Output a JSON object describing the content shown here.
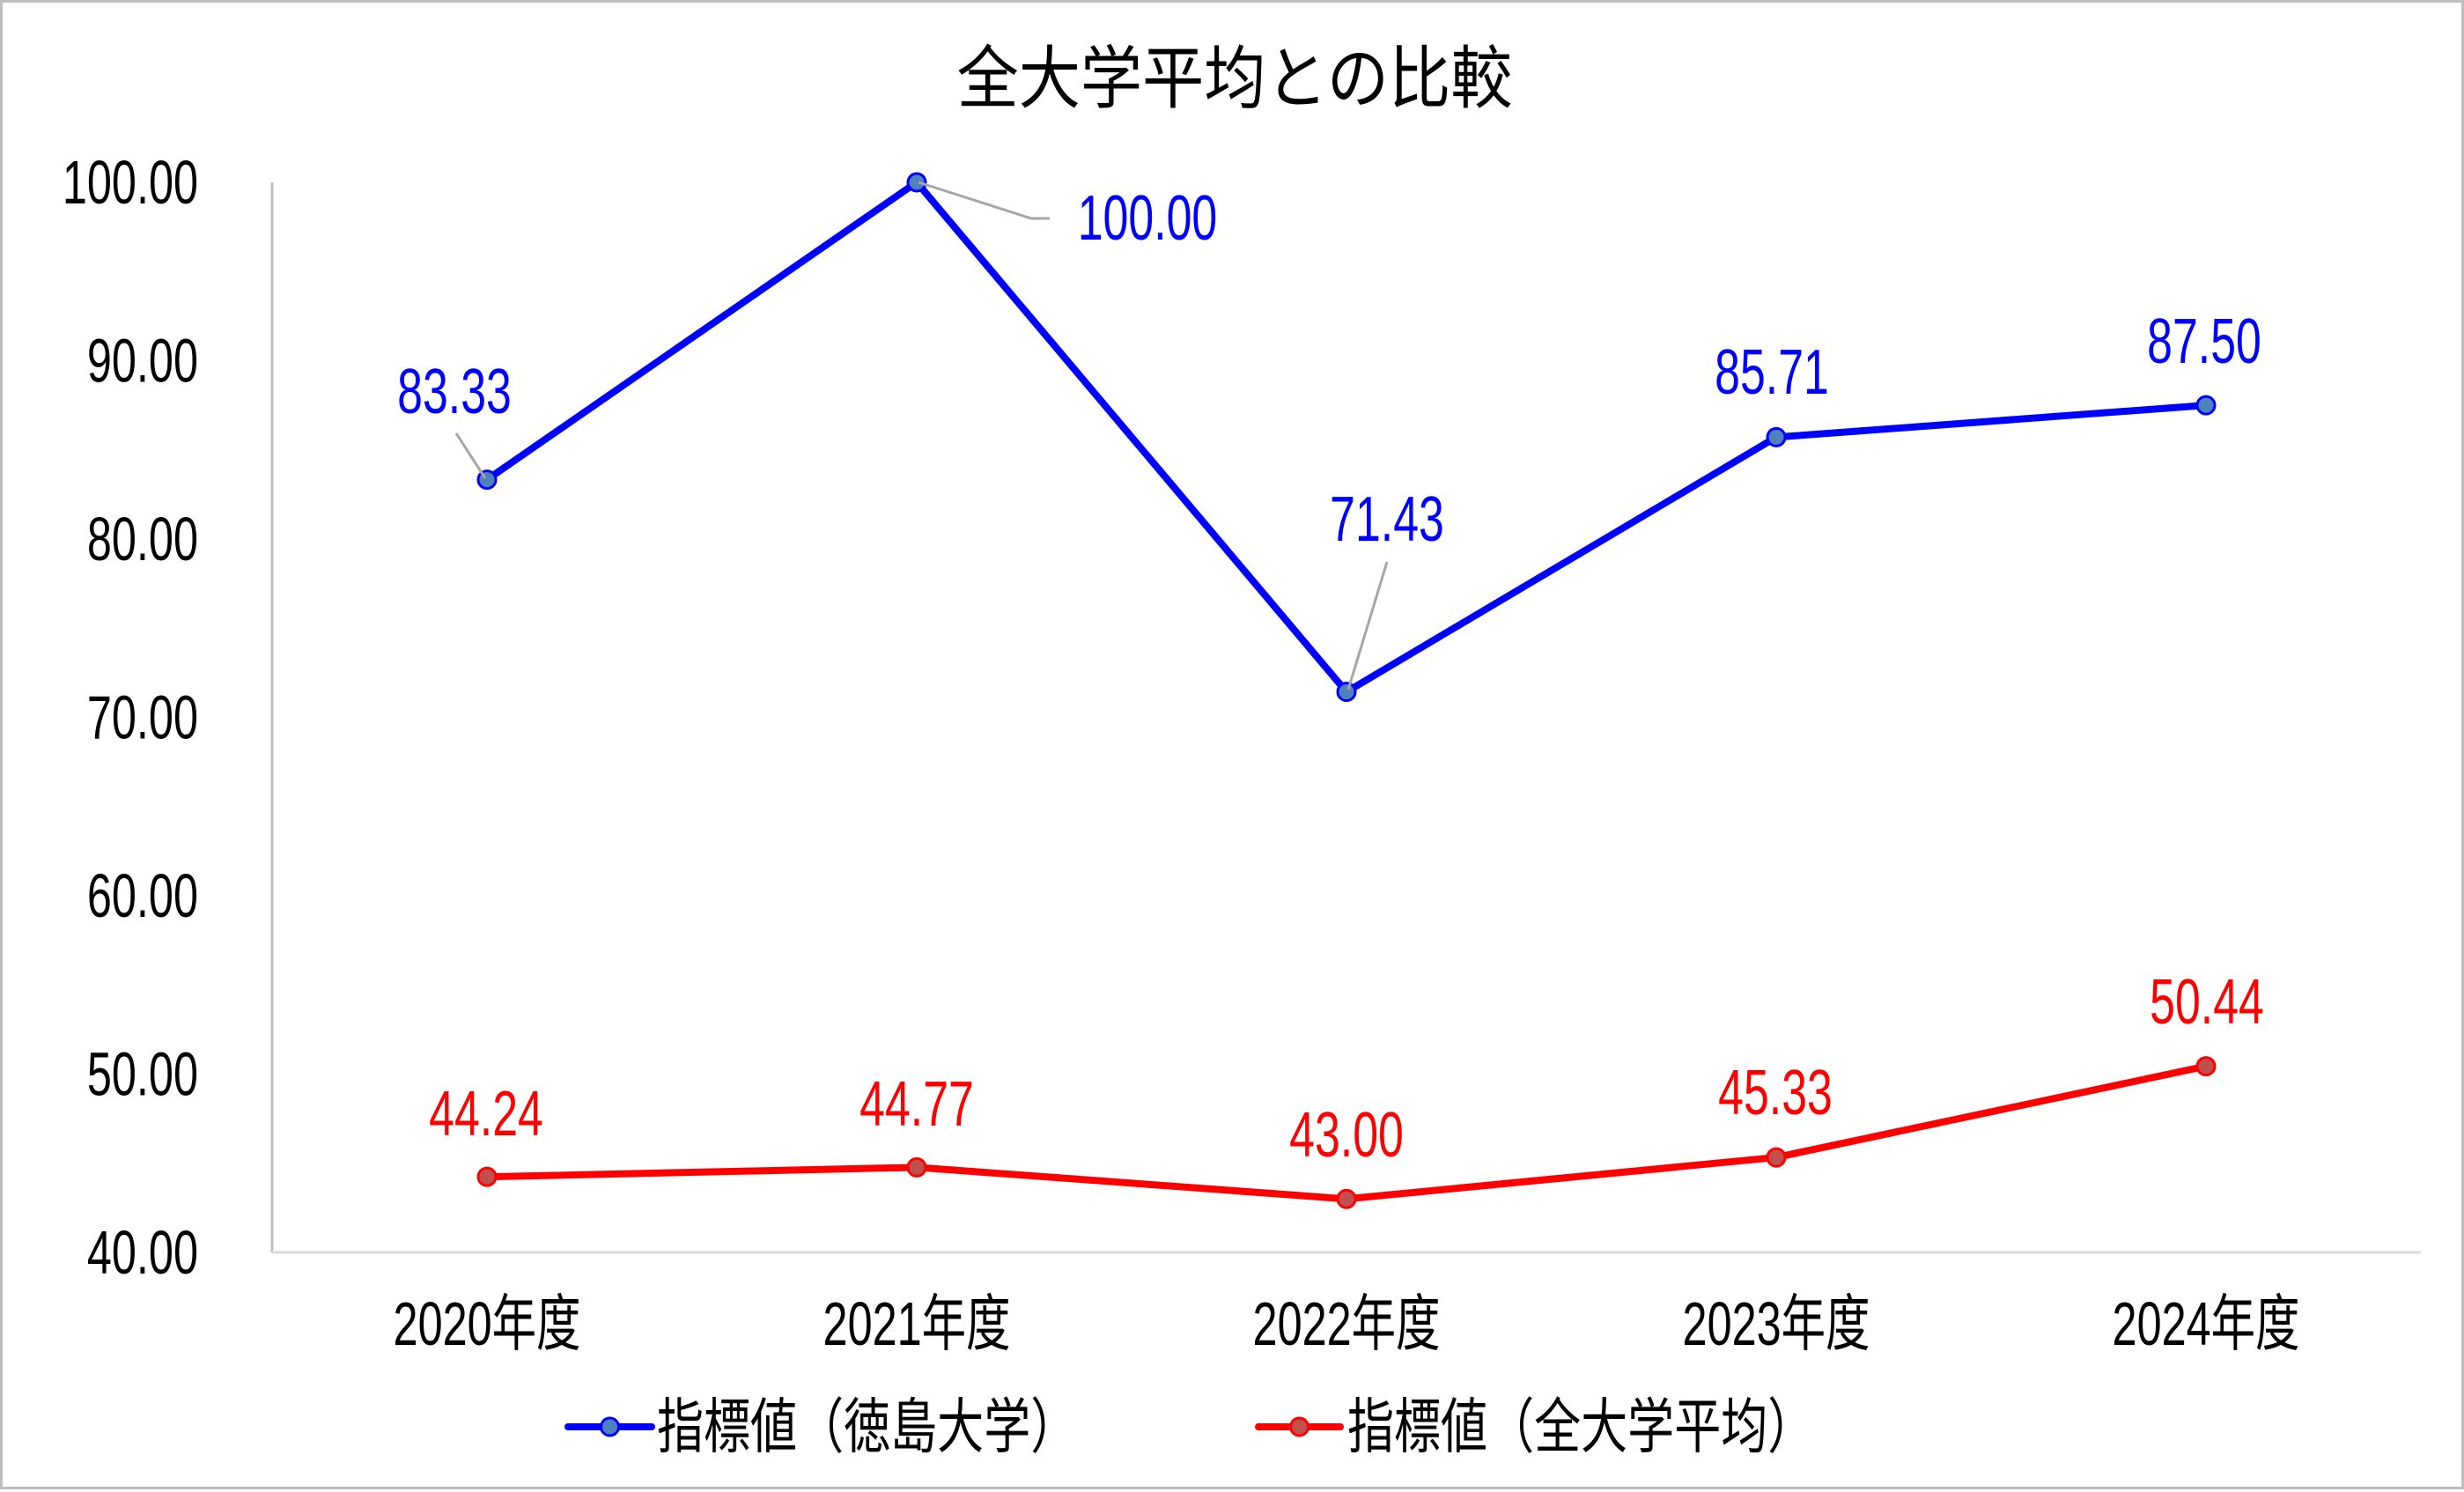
{
  "chart_data": {
    "type": "line",
    "title": "全大学平均との比較",
    "xlabel": "",
    "ylabel": "",
    "categories": [
      "2020年度",
      "2021年度",
      "2022年度",
      "2023年度",
      "2024年度"
    ],
    "series": [
      {
        "name": "指標値（徳島大学）",
        "values": [
          83.33,
          100.0,
          71.43,
          85.71,
          87.5
        ],
        "labels": [
          "83.33",
          "100.00",
          "71.43",
          "85.71",
          "87.50"
        ],
        "line_color": "#0000FF",
        "marker_fill": "#4F81BD",
        "label_color": "#0000FF"
      },
      {
        "name": "指標値（全大学平均）",
        "values": [
          44.24,
          44.77,
          43.0,
          45.33,
          50.44
        ],
        "labels": [
          "44.24",
          "44.77",
          "43.00",
          "45.33",
          "50.44"
        ],
        "line_color": "#FF0000",
        "marker_fill": "#C0504D",
        "label_color": "#FF0000"
      }
    ],
    "ylim": [
      40,
      100
    ],
    "yticks": [
      "40.00",
      "50.00",
      "60.00",
      "70.00",
      "80.00",
      "90.00",
      "100.00"
    ],
    "ytick_values": [
      40,
      50,
      60,
      70,
      80,
      90,
      100
    ],
    "grid": false,
    "legend_position": "bottom"
  },
  "colors": {
    "axis": "#BFBFBF",
    "leader": "#A6A6A6",
    "text": "#000000",
    "border": "#BFBFBF"
  }
}
